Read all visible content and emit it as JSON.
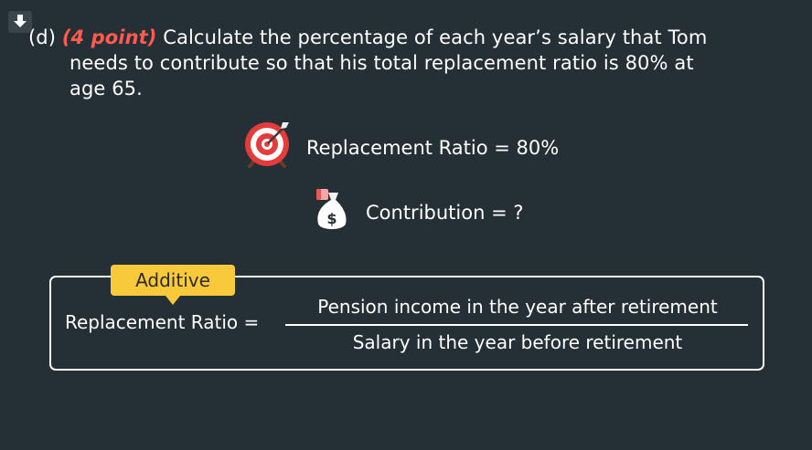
{
  "question": {
    "label": "(d)",
    "points": "(4 point)",
    "line1": "Calculate the percentage of each year’s salary that Tom",
    "line2": "needs to contribute so that his total replacement ratio is 80% at",
    "line3": "age 65."
  },
  "target": {
    "text": "Replacement Ratio = 80%"
  },
  "contribution": {
    "text": "Contribution = ?",
    "money_symbol": "$"
  },
  "formula": {
    "tag": "Additive",
    "lhs": "Replacement Ratio =",
    "numerator": "Pension income in the year after retirement",
    "denominator": "Salary in the year before retirement"
  },
  "icons": {
    "download": "download-arrow-icon",
    "target": "target-icon",
    "money_bag": "money-bag-icon"
  }
}
